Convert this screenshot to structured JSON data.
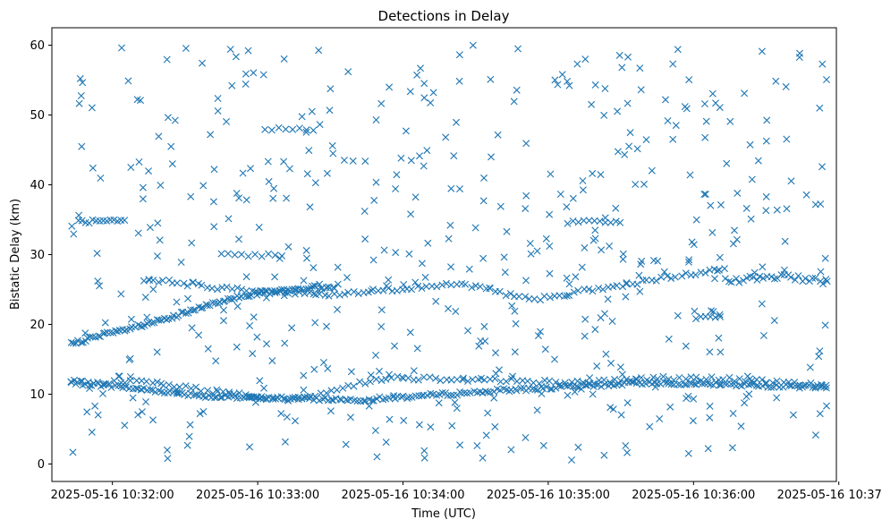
{
  "chart_data": {
    "type": "scatter",
    "title": "Detections in Delay",
    "xlabel": "Time (UTC)",
    "ylabel": "Bistatic Delay (km)",
    "marker": "x",
    "color": "#1f77b4",
    "grid": false,
    "legend": "none",
    "xlim": [
      "2025-05-16 10:31:35",
      "2025-05-16 10:36:59"
    ],
    "ylim": [
      -2.5,
      62.5
    ],
    "x_ticks": [
      "2025-05-16 10:32:00",
      "2025-05-16 10:33:00",
      "2025-05-16 10:34:00",
      "2025-05-16 10:35:00",
      "2025-05-16 10:36:00",
      "2025-05-16 10:37:00"
    ],
    "y_ticks": [
      0,
      10,
      20,
      30,
      40,
      50,
      60
    ],
    "x_start": "2025-05-16 10:31:43",
    "x_end": "2025-05-16 10:36:55",
    "seed": 7,
    "tracks": [
      {
        "t": [
          0,
          60,
          120,
          180,
          240,
          312
        ],
        "y": [
          11.8,
          9.6,
          9.2,
          10.6,
          11.7,
          11.0
        ],
        "count": 260,
        "jitter": 0.25
      },
      {
        "t": [
          0,
          30,
          60,
          90,
          130,
          170,
          210,
          240,
          270,
          312
        ],
        "y": [
          11.5,
          11.9,
          10.3,
          9.1,
          12.4,
          12.1,
          11.6,
          12.3,
          12.2,
          11.2
        ],
        "count": 140,
        "jitter": 0.3
      },
      {
        "t": [
          0,
          38,
          70,
          110
        ],
        "y": [
          17.3,
          20.6,
          24.2,
          25.5
        ],
        "count": 110,
        "jitter": 0.3
      },
      {
        "t": [
          30,
          60,
          105,
          160,
          190,
          230,
          270
        ],
        "y": [
          26.5,
          25.3,
          24.2,
          25.8,
          23.6,
          25.7,
          28.0
        ],
        "count": 120,
        "jitter": 0.3
      },
      {
        "t": [
          270,
          295,
          312
        ],
        "y": [
          26.2,
          27.0,
          26.0
        ],
        "count": 30,
        "jitter": 0.4
      }
    ],
    "clusters": [
      {
        "t0": 3,
        "t1": 22,
        "y0": 34.5,
        "y1": 35.0,
        "count": 14
      },
      {
        "t0": 62,
        "t1": 87,
        "y0": 29.5,
        "y1": 30.2,
        "count": 10
      },
      {
        "t0": 80,
        "t1": 100,
        "y0": 47.8,
        "y1": 48.2,
        "count": 8
      },
      {
        "t0": 205,
        "t1": 225,
        "y0": 34.4,
        "y1": 35.0,
        "count": 10
      },
      {
        "t0": 258,
        "t1": 268,
        "y0": 20.7,
        "y1": 21.2,
        "count": 6
      }
    ],
    "noise": {
      "count": 520,
      "t0": 0,
      "t1": 312,
      "y0": 0.5,
      "y1": 60.0
    }
  }
}
